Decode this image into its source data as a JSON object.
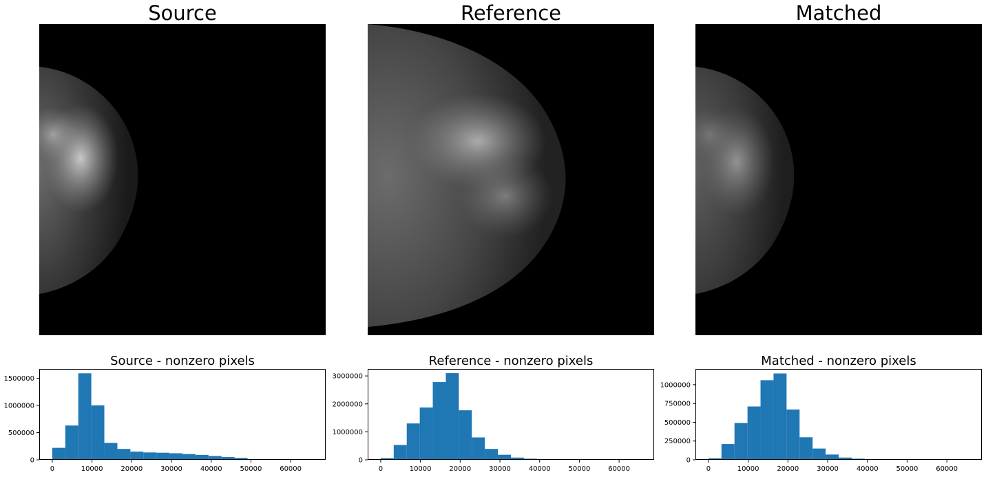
{
  "chart_data": [
    {
      "type": "image",
      "title": "Source"
    },
    {
      "type": "image",
      "title": "Reference"
    },
    {
      "type": "image",
      "title": "Matched"
    },
    {
      "type": "bar",
      "title": "Source - nonzero pixels",
      "xlabel": "",
      "ylabel": "",
      "bin_edges": [
        0,
        3277,
        6554,
        9831,
        13108,
        16385,
        19662,
        22939,
        26216,
        29493,
        32770,
        36047,
        39324,
        42601,
        45878,
        49155,
        52432,
        55709,
        58986,
        62263,
        65540
      ],
      "values": [
        220000,
        630000,
        1590000,
        1000000,
        310000,
        200000,
        150000,
        135000,
        130000,
        120000,
        105000,
        90000,
        70000,
        50000,
        35000,
        12000,
        3000,
        1000,
        0,
        0
      ],
      "xlim": [
        -3277,
        68817
      ],
      "ylim": [
        0,
        1670000
      ],
      "xticks": [
        0,
        10000,
        20000,
        30000,
        40000,
        50000,
        60000
      ],
      "yticks": [
        0,
        500000,
        1000000,
        1500000
      ],
      "bar_color": "#1f77b4"
    },
    {
      "type": "bar",
      "title": "Reference - nonzero pixels",
      "xlabel": "",
      "ylabel": "",
      "bin_edges": [
        0,
        3277,
        6554,
        9831,
        13108,
        16385,
        19662,
        22939,
        26216,
        29493,
        32770,
        36047,
        39324,
        42601,
        45878,
        49155,
        52432,
        55709,
        58986,
        62263,
        65540
      ],
      "values": [
        60000,
        530000,
        1300000,
        1870000,
        2780000,
        3100000,
        1770000,
        800000,
        390000,
        180000,
        80000,
        40000,
        15000,
        5000,
        1000,
        0,
        0,
        0,
        0,
        0
      ],
      "xlim": [
        -3277,
        68817
      ],
      "ylim": [
        0,
        3250000
      ],
      "xticks": [
        0,
        10000,
        20000,
        30000,
        40000,
        50000,
        60000
      ],
      "yticks": [
        0,
        1000000,
        2000000,
        3000000
      ],
      "bar_color": "#1f77b4"
    },
    {
      "type": "bar",
      "title": "Matched - nonzero pixels",
      "xlabel": "",
      "ylabel": "",
      "bin_edges": [
        0,
        3277,
        6554,
        9831,
        13108,
        16385,
        19662,
        22939,
        26216,
        29493,
        32770,
        36047,
        39324,
        42601,
        45878,
        49155,
        52432,
        55709,
        58986,
        62263,
        65540
      ],
      "values": [
        20000,
        210000,
        490000,
        710000,
        1060000,
        1150000,
        670000,
        300000,
        150000,
        70000,
        30000,
        15000,
        5000,
        1000,
        0,
        0,
        0,
        0,
        0,
        0
      ],
      "xlim": [
        -3277,
        68817
      ],
      "ylim": [
        0,
        1210000
      ],
      "xticks": [
        0,
        10000,
        20000,
        30000,
        40000,
        50000,
        60000
      ],
      "yticks": [
        0,
        250000,
        500000,
        750000,
        1000000
      ],
      "bar_color": "#1f77b4"
    }
  ]
}
